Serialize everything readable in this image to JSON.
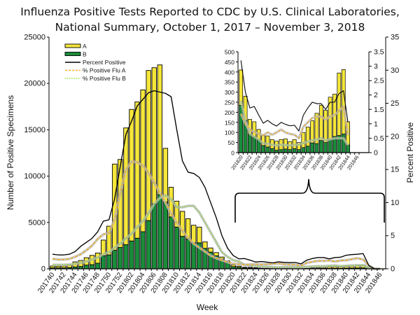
{
  "title_line1": "Influenza Positive Tests Reported to CDC by U.S. Clinical Laboratories,",
  "title_line2": "National Summary, October 1, 2017 – November 3, 2018",
  "colors": {
    "A": "#f5e63a",
    "B": "#1a8c3a",
    "percent": "#000000",
    "pctA": "#f2b01e",
    "pctB": "#7ddc1f",
    "shadow": "#b9b9b9"
  },
  "chart_data": [
    {
      "type": "bar",
      "name": "main",
      "title": "Influenza Positive Tests Reported to CDC by U.S. Clinical Laboratories, National Summary, October 1, 2017 – November 3, 2018",
      "xlabel": "Week",
      "ylabel": "Number of Positive Specimens",
      "y2label": "Percent Positive",
      "ylim": [
        0,
        25000
      ],
      "y2lim": [
        0,
        35
      ],
      "yticks": [
        "0",
        "5000",
        "10000",
        "15000",
        "20000",
        "25000"
      ],
      "y2ticks": [
        "0",
        "5",
        "10",
        "15",
        "20",
        "25",
        "30",
        "35"
      ],
      "legend": [
        "A",
        "B",
        "Percent Positive",
        "% Positive Flu A",
        "% Positive Flu B"
      ],
      "legend_position": "top-left",
      "x": [
        "201740",
        "201741",
        "201742",
        "201743",
        "201744",
        "201745",
        "201746",
        "201747",
        "201748",
        "201749",
        "201750",
        "201751",
        "201752",
        "201801",
        "201802",
        "201803",
        "201804",
        "201805",
        "201806",
        "201807",
        "201808",
        "201809",
        "201810",
        "201811",
        "201812",
        "201813",
        "201814",
        "201815",
        "201816",
        "201817",
        "201818",
        "201819",
        "201820",
        "201821",
        "201822",
        "201823",
        "201824",
        "201825",
        "201826",
        "201827",
        "201828",
        "201829",
        "201830",
        "201831",
        "201832",
        "201833",
        "201834",
        "201835",
        "201836",
        "201837",
        "201838",
        "201839",
        "201840",
        "201841",
        "201842",
        "201843",
        "201844",
        "201845",
        "201846"
      ],
      "xticklabels": [
        "201740",
        "201742",
        "201744",
        "201746",
        "201748",
        "201750",
        "201752",
        "201802",
        "201804",
        "201806",
        "201808",
        "201810",
        "201812",
        "201814",
        "201816",
        "201818",
        "201820",
        "201822",
        "201824",
        "201826",
        "201828",
        "201830",
        "201832",
        "201834",
        "201836",
        "201838",
        "201840",
        "201842",
        "201844",
        "201846"
      ],
      "series": [
        {
          "name": "A",
          "values": [
            200,
            180,
            200,
            250,
            550,
            650,
            800,
            1000,
            1100,
            1700,
            3100,
            9300,
            9500,
            12600,
            14200,
            14700,
            15300,
            16200,
            14700,
            14000,
            5800,
            3200,
            2800,
            2700,
            2200,
            1900,
            1700,
            700,
            450,
            350,
            220,
            150,
            175,
            120,
            75,
            75,
            50,
            50,
            55,
            45,
            45,
            50,
            50,
            40,
            45,
            35,
            75,
            95,
            110,
            150,
            175,
            160,
            210,
            210,
            310,
            320,
            115,
            0,
            0
          ]
        },
        {
          "name": "B",
          "values": [
            100,
            100,
            100,
            130,
            200,
            250,
            400,
            450,
            600,
            1400,
            1500,
            2000,
            2300,
            2600,
            3000,
            3300,
            4000,
            5200,
            7000,
            8000,
            7200,
            5600,
            4500,
            3500,
            3200,
            2800,
            2800,
            2200,
            1800,
            1400,
            1050,
            700,
            235,
            160,
            90,
            78,
            65,
            35,
            28,
            20,
            12,
            15,
            18,
            15,
            20,
            15,
            25,
            32,
            48,
            45,
            60,
            50,
            65,
            80,
            85,
            92,
            38,
            0,
            0
          ]
        },
        {
          "name": "Percent Positive",
          "axis": "y2",
          "values": [
            2.2,
            2.1,
            2.1,
            2.2,
            2.6,
            3.4,
            4,
            4.6,
            5.6,
            7.2,
            7.4,
            10.6,
            15.5,
            20.3,
            22.3,
            24.6,
            25.6,
            26.6,
            26.9,
            26.7,
            26.5,
            26,
            21,
            16.3,
            14.6,
            14.4,
            13.8,
            12.3,
            10,
            7.7,
            5,
            3.1,
            2,
            1.5,
            1.55,
            1.3,
            1.02,
            1.1,
            1,
            0.9,
            1.05,
            0.97,
            0.93,
            0.95,
            0.75,
            1.3,
            1.55,
            1.7,
            1.7,
            1.5,
            1.7,
            1.75,
            2.05,
            2.15,
            2.2,
            2.3,
            0.5,
            0,
            0
          ]
        },
        {
          "name": "% Positive Flu A",
          "axis": "y2",
          "values": [
            1.5,
            1.4,
            1.4,
            1.5,
            1.8,
            2.2,
            2.8,
            3.5,
            4.5,
            5.2,
            5.4,
            7.5,
            11.5,
            15,
            16.2,
            16.1,
            15.6,
            14.5,
            13,
            11.5,
            10,
            8.3,
            7,
            5.7,
            4.7,
            3.8,
            3.2,
            2.6,
            2,
            1.6,
            1.3,
            1,
            0.75,
            0.7,
            0.6,
            0.65,
            0.7,
            0.65,
            0.7,
            0.75,
            0.8,
            0.7,
            0.65,
            0.6,
            0.45,
            0.9,
            1.05,
            1.2,
            1.2,
            1.25,
            1.1,
            1.25,
            1.3,
            1.45,
            1.6,
            1.4,
            0.5,
            0,
            0
          ]
        },
        {
          "name": "% Positive Flu B",
          "axis": "y2",
          "values": [
            0.6,
            0.6,
            0.6,
            0.65,
            0.75,
            0.9,
            1.1,
            1.4,
            1.7,
            2.2,
            2.5,
            3.2,
            3.8,
            4.6,
            5.3,
            6.3,
            7.2,
            8.4,
            9.8,
            10.7,
            11.1,
            10.5,
            9.3,
            9.3,
            9.5,
            9.5,
            8.5,
            7,
            5.5,
            4,
            2.5,
            1.8,
            1.3,
            1.1,
            0.6,
            0.5,
            0.42,
            0.3,
            0.3,
            0.25,
            0.22,
            0.27,
            0.25,
            0.24,
            0.25,
            0.3,
            0.35,
            0.4,
            0.4,
            0.45,
            0.5,
            0.4,
            0.45,
            0.5,
            0.5,
            0.5,
            0.2,
            0,
            0
          ]
        }
      ]
    },
    {
      "type": "bar",
      "name": "inset",
      "ylim": [
        0,
        500
      ],
      "y2lim": [
        0,
        3.5
      ],
      "yticks": [
        "0",
        "50",
        "100",
        "150",
        "200",
        "250",
        "300",
        "350",
        "400",
        "450",
        "500"
      ],
      "y2ticks": [
        "0",
        "0.5",
        "1",
        "1.5",
        "2",
        "2.5",
        "3",
        "3.5"
      ],
      "x": [
        "201820",
        "201821",
        "201822",
        "201823",
        "201824",
        "201825",
        "201826",
        "201827",
        "201828",
        "201829",
        "201830",
        "201831",
        "201832",
        "201833",
        "201834",
        "201835",
        "201836",
        "201837",
        "201838",
        "201839",
        "201840",
        "201841",
        "201842",
        "201843",
        "201844",
        "201845",
        "201846"
      ],
      "xticklabels": [
        "201820",
        "201822",
        "201824",
        "201826",
        "201828",
        "201830",
        "201832",
        "201834",
        "201836",
        "201838",
        "201840",
        "201842",
        "201844",
        "201846"
      ],
      "series": [
        {
          "name": "A",
          "values": [
            175,
            120,
            75,
            75,
            50,
            50,
            55,
            45,
            45,
            50,
            50,
            40,
            45,
            35,
            75,
            95,
            110,
            150,
            175,
            160,
            210,
            210,
            310,
            320,
            115,
            0,
            0
          ]
        },
        {
          "name": "B",
          "values": [
            235,
            160,
            90,
            78,
            65,
            35,
            28,
            20,
            12,
            15,
            18,
            15,
            20,
            15,
            25,
            32,
            48,
            45,
            60,
            50,
            65,
            80,
            85,
            92,
            38,
            0,
            0
          ]
        },
        {
          "name": "Percent Positive",
          "axis": "y2",
          "values": [
            3.2,
            2.1,
            1.55,
            1.6,
            1.3,
            1.02,
            1.12,
            1.0,
            0.92,
            1.05,
            0.98,
            0.93,
            0.95,
            0.75,
            1.3,
            1.55,
            1.75,
            1.7,
            1.7,
            1.5,
            1.75,
            1.75,
            2.05,
            2.15,
            1.05,
            null,
            null
          ]
        },
        {
          "name": "% Positive Flu A",
          "axis": "y2",
          "values": [
            1.35,
            1.0,
            0.8,
            0.72,
            0.65,
            0.6,
            0.7,
            0.62,
            0.7,
            0.8,
            0.7,
            0.65,
            0.62,
            0.5,
            0.9,
            1.05,
            1.2,
            1.25,
            1.25,
            1.15,
            1.25,
            1.3,
            1.45,
            1.6,
            0.6,
            null,
            null
          ]
        },
        {
          "name": "% Positive Flu B",
          "axis": "y2",
          "values": [
            1.8,
            1.1,
            0.65,
            0.55,
            0.45,
            0.32,
            0.3,
            0.27,
            0.25,
            0.27,
            0.26,
            0.25,
            0.27,
            0.28,
            0.33,
            0.38,
            0.42,
            0.45,
            0.5,
            0.42,
            0.46,
            0.5,
            0.5,
            0.5,
            0.25,
            null,
            null
          ]
        }
      ]
    }
  ]
}
